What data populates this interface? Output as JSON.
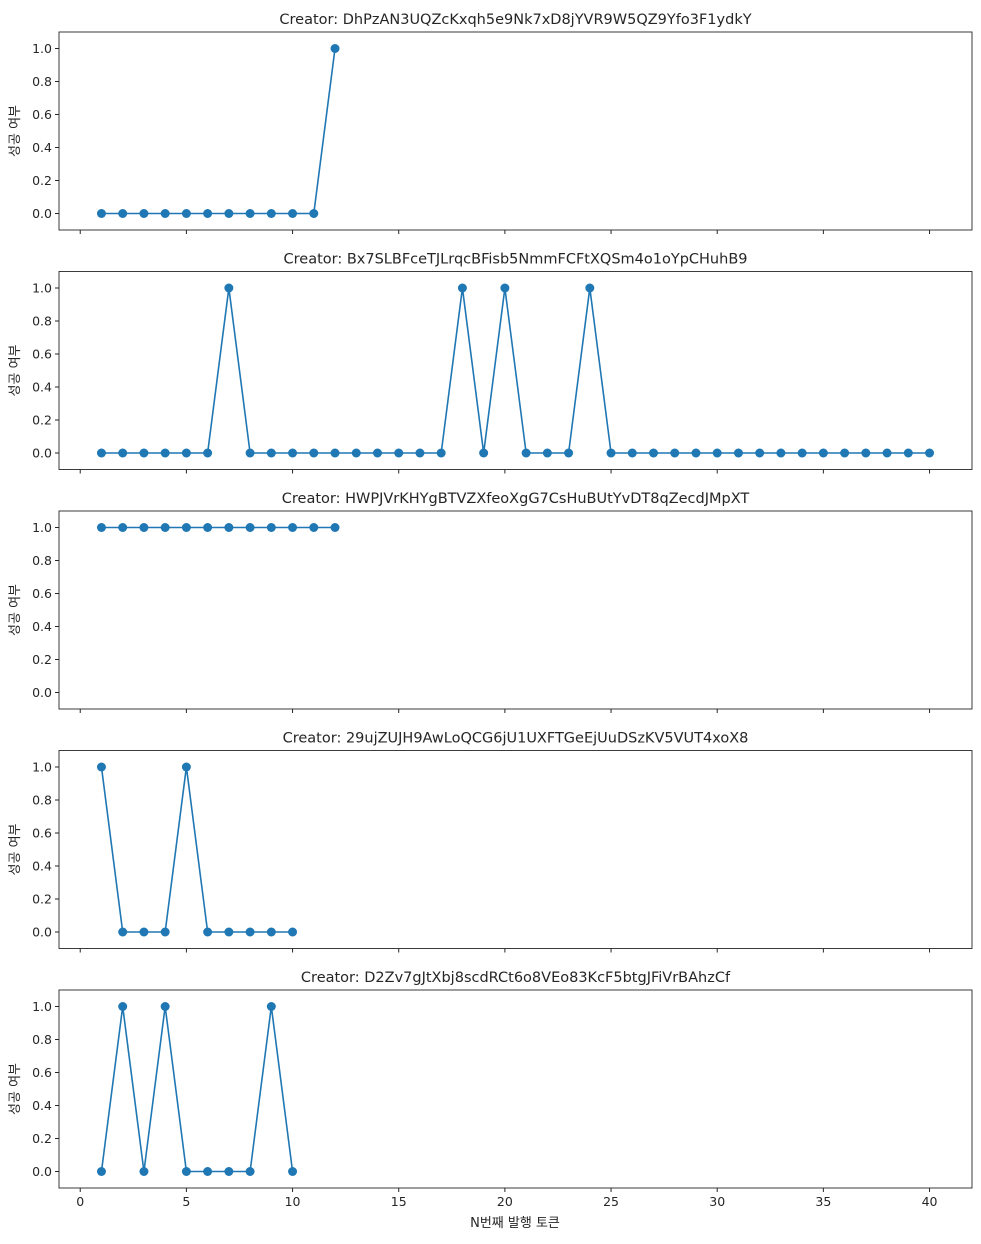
{
  "chart_data": {
    "type": "line",
    "xlabel": "N번째 발행 토큰",
    "ylabel": "성공 여부",
    "xlim": [
      -1,
      42
    ],
    "ylim": [
      -0.1,
      1.1
    ],
    "xticks": [
      0,
      5,
      10,
      15,
      20,
      25,
      30,
      35,
      40
    ],
    "yticks": [
      0.0,
      0.2,
      0.4,
      0.6,
      0.8,
      1.0
    ],
    "ytick_labels": [
      "0.0",
      "0.2",
      "0.4",
      "0.6",
      "0.8",
      "1.0"
    ],
    "grid": false,
    "color": "#1f77b4",
    "subplots": [
      {
        "title": "Creator: DhPzAN3UQZcKxqh5e9Nk7xD8jYVR9W5QZ9Yfo3F1ydkY",
        "x": [
          1,
          2,
          3,
          4,
          5,
          6,
          7,
          8,
          9,
          10,
          11,
          12
        ],
        "y": [
          0,
          0,
          0,
          0,
          0,
          0,
          0,
          0,
          0,
          0,
          0,
          1
        ]
      },
      {
        "title": "Creator: Bx7SLBFceTJLrqcBFisb5NmmFCFtXQSm4o1oYpCHuhB9",
        "x": [
          1,
          2,
          3,
          4,
          5,
          6,
          7,
          8,
          9,
          10,
          11,
          12,
          13,
          14,
          15,
          16,
          17,
          18,
          19,
          20,
          21,
          22,
          23,
          24,
          25,
          26,
          27,
          28,
          29,
          30,
          31,
          32,
          33,
          34,
          35,
          36,
          37,
          38,
          39,
          40
        ],
        "y": [
          0,
          0,
          0,
          0,
          0,
          0,
          1,
          0,
          0,
          0,
          0,
          0,
          0,
          0,
          0,
          0,
          0,
          1,
          0,
          1,
          0,
          0,
          0,
          1,
          0,
          0,
          0,
          0,
          0,
          0,
          0,
          0,
          0,
          0,
          0,
          0,
          0,
          0,
          0,
          0
        ]
      },
      {
        "title": "Creator: HWPJVrKHYgBTVZXfeoXgG7CsHuBUtYvDT8qZecdJMpXT",
        "x": [
          1,
          2,
          3,
          4,
          5,
          6,
          7,
          8,
          9,
          10,
          11,
          12
        ],
        "y": [
          1,
          1,
          1,
          1,
          1,
          1,
          1,
          1,
          1,
          1,
          1,
          1
        ]
      },
      {
        "title": "Creator: 29ujZUJH9AwLoQCG6jU1UXFTGeEjUuDSzKV5VUT4xoX8",
        "x": [
          1,
          2,
          3,
          4,
          5,
          6,
          7,
          8,
          9,
          10
        ],
        "y": [
          1,
          0,
          0,
          0,
          1,
          0,
          0,
          0,
          0,
          0
        ]
      },
      {
        "title": "Creator: D2Zv7gJtXbj8scdRCt6o8VEo83KcF5btgJFiVrBAhzCf",
        "x": [
          1,
          2,
          3,
          4,
          5,
          6,
          7,
          8,
          9,
          10
        ],
        "y": [
          0,
          1,
          0,
          1,
          0,
          0,
          0,
          0,
          1,
          0
        ]
      }
    ]
  }
}
